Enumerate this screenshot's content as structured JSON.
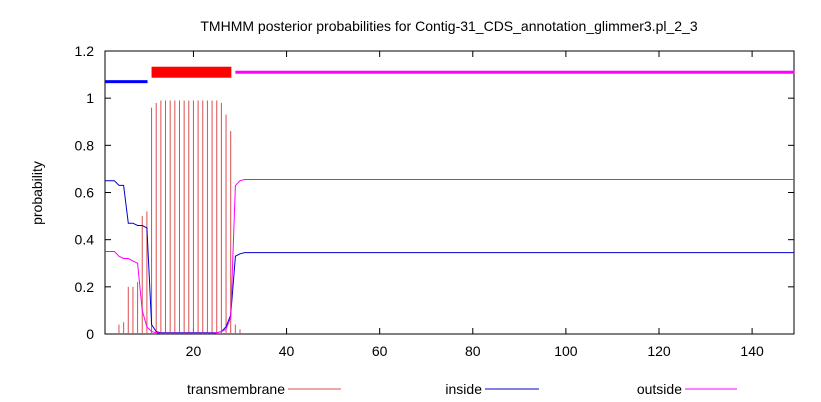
{
  "chart_data": {
    "type": "line",
    "title": "TMHMM posterior probabilities for Contig-31_CDS_annotation_glimmer3.pl_2_3",
    "xlabel": "",
    "ylabel": "probability",
    "xlim": [
      1,
      149
    ],
    "ylim": [
      0,
      1.2
    ],
    "xticks": [
      20,
      40,
      60,
      80,
      100,
      120,
      140
    ],
    "yticks": [
      0,
      0.2,
      0.4,
      0.6,
      0.8,
      1,
      1.2
    ],
    "legend_position": "bottom",
    "topology": [
      {
        "label": "inside",
        "start": 1,
        "end": 10,
        "y": 1.07,
        "color": "#0000ff"
      },
      {
        "label": "transmembrane",
        "start": 11,
        "end": 28,
        "y": 1.11,
        "color": "#ff0000"
      },
      {
        "label": "outside",
        "start": 29,
        "end": 149,
        "y": 1.11,
        "color": "#ff00ff"
      }
    ],
    "series": [
      {
        "name": "transmembrane",
        "color": "#d95050",
        "style": "impulses",
        "x": [
          1,
          2,
          3,
          4,
          5,
          6,
          7,
          8,
          9,
          10,
          11,
          12,
          13,
          14,
          15,
          16,
          17,
          18,
          19,
          20,
          21,
          22,
          23,
          24,
          25,
          26,
          27,
          28,
          29,
          30
        ],
        "values": [
          0,
          0,
          0,
          0.04,
          0.05,
          0.2,
          0.2,
          0.22,
          0.5,
          0.52,
          0.96,
          0.98,
          0.99,
          0.99,
          0.99,
          0.99,
          0.99,
          0.99,
          0.99,
          0.99,
          0.99,
          0.99,
          0.99,
          0.99,
          0.99,
          0.98,
          0.93,
          0.86,
          0.04,
          0.02
        ]
      },
      {
        "name": "inside",
        "color": "#0000cc",
        "style": "line",
        "x": [
          1,
          2,
          3,
          4,
          5,
          6,
          7,
          8,
          9,
          10,
          11,
          12,
          13,
          14,
          15,
          16,
          17,
          18,
          19,
          20,
          21,
          22,
          23,
          24,
          25,
          26,
          27,
          28,
          29,
          30,
          31,
          35,
          40,
          50,
          60,
          80,
          100,
          120,
          140,
          149
        ],
        "values": [
          0.65,
          0.65,
          0.65,
          0.63,
          0.63,
          0.47,
          0.47,
          0.46,
          0.46,
          0.45,
          0.04,
          0.01,
          0.005,
          0.005,
          0.005,
          0.005,
          0.005,
          0.005,
          0.005,
          0.005,
          0.005,
          0.005,
          0.005,
          0.005,
          0.005,
          0.01,
          0.03,
          0.08,
          0.33,
          0.34,
          0.345,
          0.345,
          0.345,
          0.345,
          0.345,
          0.345,
          0.345,
          0.345,
          0.345,
          0.345
        ]
      },
      {
        "name": "outside",
        "color": "#ff00ff",
        "style": "line",
        "x": [
          1,
          2,
          3,
          4,
          5,
          6,
          7,
          8,
          9,
          10,
          11,
          12,
          13,
          14,
          15,
          16,
          17,
          18,
          19,
          20,
          21,
          22,
          23,
          24,
          25,
          26,
          27,
          28,
          29,
          30,
          31,
          35,
          40,
          50,
          60,
          80,
          100,
          120,
          140,
          149
        ],
        "values": [
          0.35,
          0.35,
          0.35,
          0.33,
          0.32,
          0.32,
          0.31,
          0.3,
          0.1,
          0.03,
          0.01,
          0.005,
          0.003,
          0.003,
          0.003,
          0.003,
          0.003,
          0.003,
          0.003,
          0.003,
          0.003,
          0.003,
          0.003,
          0.003,
          0.005,
          0.01,
          0.02,
          0.07,
          0.63,
          0.65,
          0.655,
          0.655,
          0.655,
          0.655,
          0.655,
          0.655,
          0.655,
          0.655,
          0.655,
          0.655
        ]
      }
    ]
  }
}
